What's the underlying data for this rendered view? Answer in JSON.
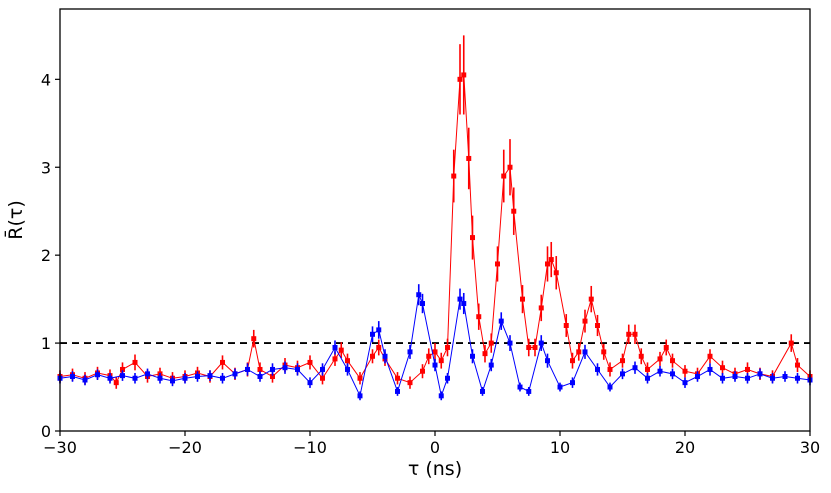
{
  "chart_data": {
    "type": "scatter",
    "title": "",
    "xlabel": "τ (ns)",
    "ylabel": "R̄(τ)",
    "xlim": [
      -30,
      30
    ],
    "ylim": [
      0,
      4.8
    ],
    "xticks": [
      -30,
      -20,
      -10,
      0,
      10,
      20,
      30
    ],
    "xtick_labels": [
      "−30",
      "−20",
      "−10",
      "0",
      "10",
      "20",
      "30"
    ],
    "yticks": [
      0,
      1,
      2,
      3,
      4
    ],
    "ytick_labels": [
      "0",
      "1",
      "2",
      "3",
      "4"
    ],
    "grid": false,
    "legend": null,
    "reference_line": {
      "y": 1.0,
      "style": "dashed",
      "color": "#000000"
    },
    "series": [
      {
        "color": "#ff0000",
        "marker": "square",
        "points": [
          [
            -30,
            0.62,
            0.07
          ],
          [
            -29,
            0.64,
            0.07
          ],
          [
            -28,
            0.6,
            0.07
          ],
          [
            -27,
            0.66,
            0.07
          ],
          [
            -26,
            0.63,
            0.07
          ],
          [
            -25.5,
            0.55,
            0.07
          ],
          [
            -25,
            0.7,
            0.08
          ],
          [
            -24,
            0.78,
            0.09
          ],
          [
            -23,
            0.62,
            0.07
          ],
          [
            -22,
            0.65,
            0.07
          ],
          [
            -21,
            0.6,
            0.07
          ],
          [
            -20,
            0.62,
            0.07
          ],
          [
            -19,
            0.66,
            0.07
          ],
          [
            -18,
            0.62,
            0.07
          ],
          [
            -17,
            0.78,
            0.08
          ],
          [
            -16,
            0.65,
            0.07
          ],
          [
            -15,
            0.7,
            0.08
          ],
          [
            -14.5,
            1.05,
            0.1
          ],
          [
            -14,
            0.7,
            0.08
          ],
          [
            -13,
            0.62,
            0.07
          ],
          [
            -12,
            0.75,
            0.08
          ],
          [
            -11,
            0.72,
            0.08
          ],
          [
            -10,
            0.78,
            0.08
          ],
          [
            -9,
            0.6,
            0.07
          ],
          [
            -8,
            0.82,
            0.08
          ],
          [
            -7.5,
            0.92,
            0.09
          ],
          [
            -7,
            0.8,
            0.08
          ],
          [
            -6,
            0.6,
            0.07
          ],
          [
            -5,
            0.85,
            0.08
          ],
          [
            -4.5,
            0.95,
            0.09
          ],
          [
            -4,
            0.82,
            0.08
          ],
          [
            -3,
            0.6,
            0.07
          ],
          [
            -2,
            0.55,
            0.07
          ],
          [
            -1,
            0.68,
            0.08
          ],
          [
            -0.5,
            0.85,
            0.09
          ],
          [
            0,
            0.9,
            0.1
          ],
          [
            0.5,
            0.8,
            0.09
          ],
          [
            1,
            0.95,
            0.1
          ],
          [
            1.5,
            2.9,
            0.3
          ],
          [
            2,
            4.0,
            0.4
          ],
          [
            2.3,
            4.05,
            0.45
          ],
          [
            2.7,
            3.1,
            0.35
          ],
          [
            3,
            2.2,
            0.25
          ],
          [
            3.5,
            1.3,
            0.15
          ],
          [
            4,
            0.88,
            0.1
          ],
          [
            4.5,
            1.0,
            0.11
          ],
          [
            5,
            1.9,
            0.2
          ],
          [
            5.5,
            2.9,
            0.3
          ],
          [
            6,
            3.0,
            0.32
          ],
          [
            6.3,
            2.5,
            0.27
          ],
          [
            7,
            1.5,
            0.16
          ],
          [
            7.5,
            0.95,
            0.1
          ],
          [
            8,
            0.95,
            0.1
          ],
          [
            8.5,
            1.4,
            0.15
          ],
          [
            9,
            1.9,
            0.2
          ],
          [
            9.3,
            1.95,
            0.2
          ],
          [
            9.7,
            1.8,
            0.19
          ],
          [
            10.5,
            1.2,
            0.13
          ],
          [
            11,
            0.8,
            0.09
          ],
          [
            11.5,
            0.9,
            0.1
          ],
          [
            12,
            1.25,
            0.13
          ],
          [
            12.5,
            1.5,
            0.15
          ],
          [
            13,
            1.2,
            0.12
          ],
          [
            13.5,
            0.9,
            0.09
          ],
          [
            14,
            0.7,
            0.08
          ],
          [
            15,
            0.8,
            0.08
          ],
          [
            15.5,
            1.1,
            0.11
          ],
          [
            16,
            1.1,
            0.11
          ],
          [
            16.5,
            0.85,
            0.09
          ],
          [
            17,
            0.7,
            0.08
          ],
          [
            18,
            0.82,
            0.08
          ],
          [
            18.5,
            0.95,
            0.09
          ],
          [
            19,
            0.8,
            0.08
          ],
          [
            20,
            0.68,
            0.07
          ],
          [
            21,
            0.65,
            0.07
          ],
          [
            22,
            0.85,
            0.08
          ],
          [
            23,
            0.72,
            0.08
          ],
          [
            24,
            0.65,
            0.07
          ],
          [
            25,
            0.7,
            0.08
          ],
          [
            26,
            0.65,
            0.07
          ],
          [
            27,
            0.62,
            0.07
          ],
          [
            28.5,
            1.0,
            0.1
          ],
          [
            29,
            0.75,
            0.08
          ],
          [
            30,
            0.62,
            0.07
          ]
        ]
      },
      {
        "color": "#0000ff",
        "marker": "square",
        "points": [
          [
            -30,
            0.6,
            0.06
          ],
          [
            -29,
            0.62,
            0.06
          ],
          [
            -28,
            0.58,
            0.06
          ],
          [
            -27,
            0.64,
            0.06
          ],
          [
            -26,
            0.6,
            0.06
          ],
          [
            -25,
            0.63,
            0.06
          ],
          [
            -24,
            0.6,
            0.06
          ],
          [
            -23,
            0.65,
            0.06
          ],
          [
            -22,
            0.6,
            0.06
          ],
          [
            -21,
            0.57,
            0.06
          ],
          [
            -20,
            0.6,
            0.06
          ],
          [
            -19,
            0.62,
            0.06
          ],
          [
            -18,
            0.63,
            0.06
          ],
          [
            -17,
            0.6,
            0.06
          ],
          [
            -16,
            0.65,
            0.06
          ],
          [
            -15,
            0.7,
            0.07
          ],
          [
            -14,
            0.62,
            0.06
          ],
          [
            -13,
            0.7,
            0.07
          ],
          [
            -12,
            0.72,
            0.07
          ],
          [
            -11,
            0.7,
            0.07
          ],
          [
            -10,
            0.55,
            0.06
          ],
          [
            -9,
            0.7,
            0.07
          ],
          [
            -8,
            0.95,
            0.08
          ],
          [
            -7,
            0.7,
            0.07
          ],
          [
            -6,
            0.4,
            0.05
          ],
          [
            -5,
            1.1,
            0.09
          ],
          [
            -4.5,
            1.15,
            0.1
          ],
          [
            -4,
            0.85,
            0.08
          ],
          [
            -3,
            0.45,
            0.05
          ],
          [
            -2,
            0.9,
            0.08
          ],
          [
            -1.3,
            1.55,
            0.12
          ],
          [
            -1,
            1.45,
            0.11
          ],
          [
            0,
            0.75,
            0.07
          ],
          [
            0.5,
            0.4,
            0.05
          ],
          [
            1,
            0.6,
            0.06
          ],
          [
            2,
            1.5,
            0.12
          ],
          [
            2.3,
            1.45,
            0.12
          ],
          [
            3,
            0.85,
            0.08
          ],
          [
            3.8,
            0.45,
            0.05
          ],
          [
            4.5,
            0.75,
            0.07
          ],
          [
            5.3,
            1.25,
            0.1
          ],
          [
            6,
            1.0,
            0.09
          ],
          [
            6.8,
            0.5,
            0.05
          ],
          [
            7.5,
            0.45,
            0.05
          ],
          [
            8.5,
            1.0,
            0.09
          ],
          [
            9,
            0.8,
            0.08
          ],
          [
            10,
            0.5,
            0.05
          ],
          [
            11,
            0.55,
            0.06
          ],
          [
            12,
            0.9,
            0.08
          ],
          [
            13,
            0.7,
            0.07
          ],
          [
            14,
            0.5,
            0.05
          ],
          [
            15,
            0.65,
            0.06
          ],
          [
            16,
            0.72,
            0.07
          ],
          [
            17,
            0.6,
            0.06
          ],
          [
            18,
            0.68,
            0.06
          ],
          [
            19,
            0.65,
            0.06
          ],
          [
            20,
            0.55,
            0.06
          ],
          [
            21,
            0.62,
            0.06
          ],
          [
            22,
            0.7,
            0.07
          ],
          [
            23,
            0.6,
            0.06
          ],
          [
            24,
            0.62,
            0.06
          ],
          [
            25,
            0.6,
            0.06
          ],
          [
            26,
            0.65,
            0.06
          ],
          [
            27,
            0.6,
            0.06
          ],
          [
            28,
            0.62,
            0.06
          ],
          [
            29,
            0.6,
            0.06
          ],
          [
            30,
            0.58,
            0.06
          ]
        ]
      }
    ]
  }
}
